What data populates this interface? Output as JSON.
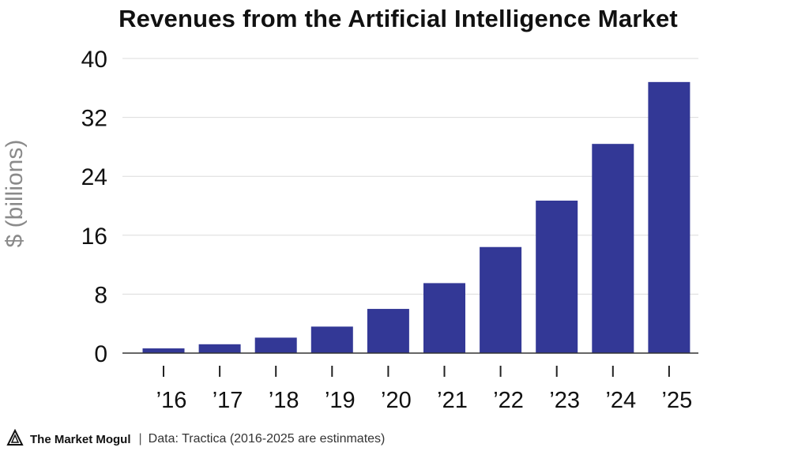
{
  "chart_data": {
    "type": "bar",
    "title": "Revenues from the Artificial Intelligence Market",
    "ylabel": "$ (billions)",
    "xlabel": "",
    "categories": [
      "’16",
      "’17",
      "’18",
      "’19",
      "’20",
      "’21",
      "’22",
      "’23",
      "’24",
      "’25"
    ],
    "values": [
      0.64,
      1.2,
      2.1,
      3.6,
      6.0,
      9.5,
      14.4,
      20.7,
      28.4,
      36.8
    ],
    "yticks": [
      0,
      8,
      16,
      24,
      32,
      40
    ],
    "ylim": [
      0,
      40
    ],
    "grid": true,
    "bar_color": "#333896"
  },
  "footer": {
    "logo": "The Market Mogul",
    "separator": "|",
    "credit": "Data: Tractica (2016-2025 are estinmates)"
  },
  "icons": {
    "logo": "mogul-logo-icon"
  }
}
